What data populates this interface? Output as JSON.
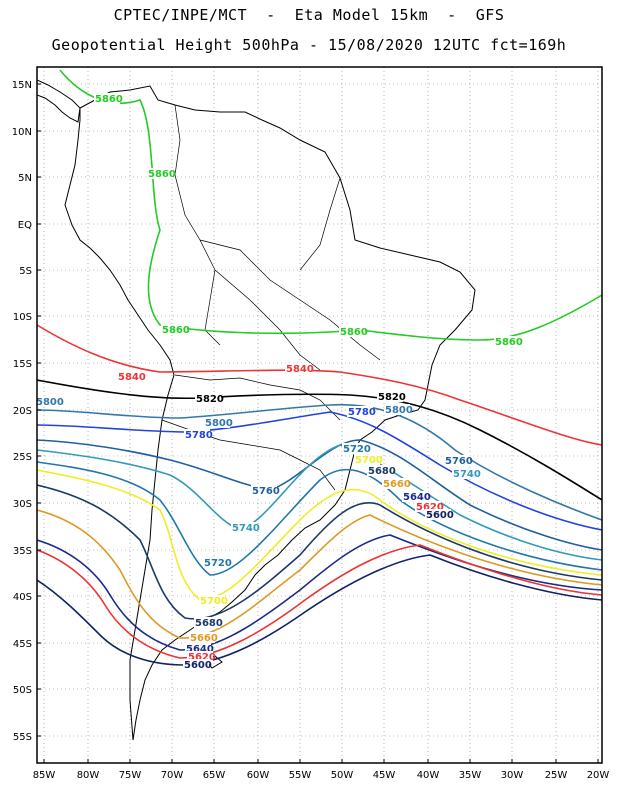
{
  "title_line1": "CPTEC/INPE/MCT  -  Eta Model 15km  -  GFS",
  "title_line2": "Geopotential Height 500hPa - 15/08/2020 12UTC fct=169h",
  "lat_labels": [
    "15N",
    "10N",
    "5N",
    "EQ",
    "5S",
    "10S",
    "15S",
    "20S",
    "25S",
    "30S",
    "35S",
    "40S",
    "45S",
    "50S",
    "55S"
  ],
  "lon_labels": [
    "85W",
    "80W",
    "75W",
    "70W",
    "65W",
    "60W",
    "55W",
    "50W",
    "45W",
    "40W",
    "35W",
    "30W",
    "25W",
    "20W"
  ],
  "contours": [
    {
      "value": "5860",
      "color": "#22cc22",
      "labels": [
        {
          "text": "5860"
        },
        {
          "text": "5860"
        },
        {
          "text": "5860"
        },
        {
          "text": "5860"
        },
        {
          "text": "5860"
        }
      ]
    },
    {
      "value": "5840",
      "color": "#ee3333",
      "labels": [
        {
          "text": "5840"
        },
        {
          "text": "5840"
        }
      ]
    },
    {
      "value": "5820",
      "color": "#000000",
      "labels": [
        {
          "text": "5820"
        },
        {
          "text": "5820"
        }
      ]
    },
    {
      "value": "5800",
      "color": "#3377aa",
      "labels": [
        {
          "text": "5800"
        },
        {
          "text": "5800"
        },
        {
          "text": "5800"
        }
      ]
    },
    {
      "value": "5780",
      "color": "#2244dd",
      "labels": [
        {
          "text": "5780"
        },
        {
          "text": "5780"
        },
        {
          "text": "5780"
        }
      ]
    },
    {
      "value": "5760",
      "color": "#1f5f9f",
      "labels": [
        {
          "text": "5760"
        },
        {
          "text": "5760"
        }
      ]
    },
    {
      "value": "5740",
      "color": "#3399bb",
      "labels": [
        {
          "text": "5740"
        },
        {
          "text": "5740"
        }
      ]
    },
    {
      "value": "5720",
      "color": "#2277aa",
      "labels": [
        {
          "text": "5720"
        },
        {
          "text": "5720"
        }
      ]
    },
    {
      "value": "5700",
      "color": "#eeee22",
      "labels": [
        {
          "text": "5700"
        },
        {
          "text": "5700"
        }
      ]
    },
    {
      "value": "5680",
      "color": "#1a3a6a",
      "labels": [
        {
          "text": "5680"
        },
        {
          "text": "5680"
        }
      ]
    },
    {
      "value": "5660",
      "color": "#dd9922",
      "labels": [
        {
          "text": "5660"
        },
        {
          "text": "5660"
        }
      ]
    },
    {
      "value": "5640",
      "color": "#1a2a8a",
      "labels": [
        {
          "text": "5640"
        },
        {
          "text": "5640"
        }
      ]
    },
    {
      "value": "5620",
      "color": "#ee3333",
      "labels": [
        {
          "text": "5620"
        },
        {
          "text": "5620"
        }
      ]
    },
    {
      "value": "5600",
      "color": "#112266",
      "labels": [
        {
          "text": "5600"
        },
        {
          "text": "5600"
        }
      ]
    }
  ],
  "colors": {
    "coastline": "#000000",
    "grid": "#888888",
    "frame": "#000000"
  }
}
